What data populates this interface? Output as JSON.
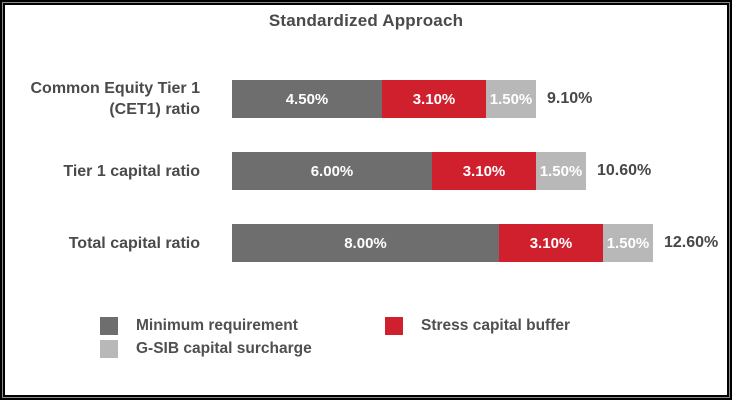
{
  "title": "Standardized Approach",
  "chart_data": {
    "type": "bar",
    "orientation": "horizontal",
    "stacked": true,
    "title": "Standardized Approach",
    "xlabel": "",
    "ylabel": "",
    "grid": false,
    "legend_position": "bottom",
    "value_format": "percent",
    "categories": [
      "Common Equity Tier 1\n(CET1) ratio",
      "Tier 1 capital ratio",
      "Total capital ratio"
    ],
    "series": [
      {
        "name": "Minimum requirement",
        "color": "#6e6e6e",
        "values": [
          4.5,
          6.0,
          8.0
        ]
      },
      {
        "name": "Stress capital buffer",
        "color": "#d0202e",
        "values": [
          3.1,
          3.1,
          3.1
        ]
      },
      {
        "name": "G-SIB capital surcharge",
        "color": "#b8b8b8",
        "values": [
          1.5,
          1.5,
          1.5
        ]
      }
    ],
    "segment_labels": [
      [
        "4.50%",
        "3.10%",
        "1.50%"
      ],
      [
        "6.00%",
        "3.10%",
        "1.50%"
      ],
      [
        "8.00%",
        "3.10%",
        "1.50%"
      ]
    ],
    "totals": [
      "9.10%",
      "10.60%",
      "12.60%"
    ]
  },
  "legend": {
    "items": [
      {
        "label": "Minimum requirement",
        "color": "#6e6e6e"
      },
      {
        "label": "Stress capital buffer",
        "color": "#d0202e"
      },
      {
        "label": "G-SIB capital surcharge",
        "color": "#b8b8b8"
      }
    ]
  },
  "colors": {
    "minimum_requirement": "#6e6e6e",
    "stress_capital_buffer": "#d0202e",
    "gsib_capital_surcharge": "#b8b8b8",
    "text": "#4a4a4a",
    "background": "#ffffff",
    "frame_border": "#000000"
  }
}
